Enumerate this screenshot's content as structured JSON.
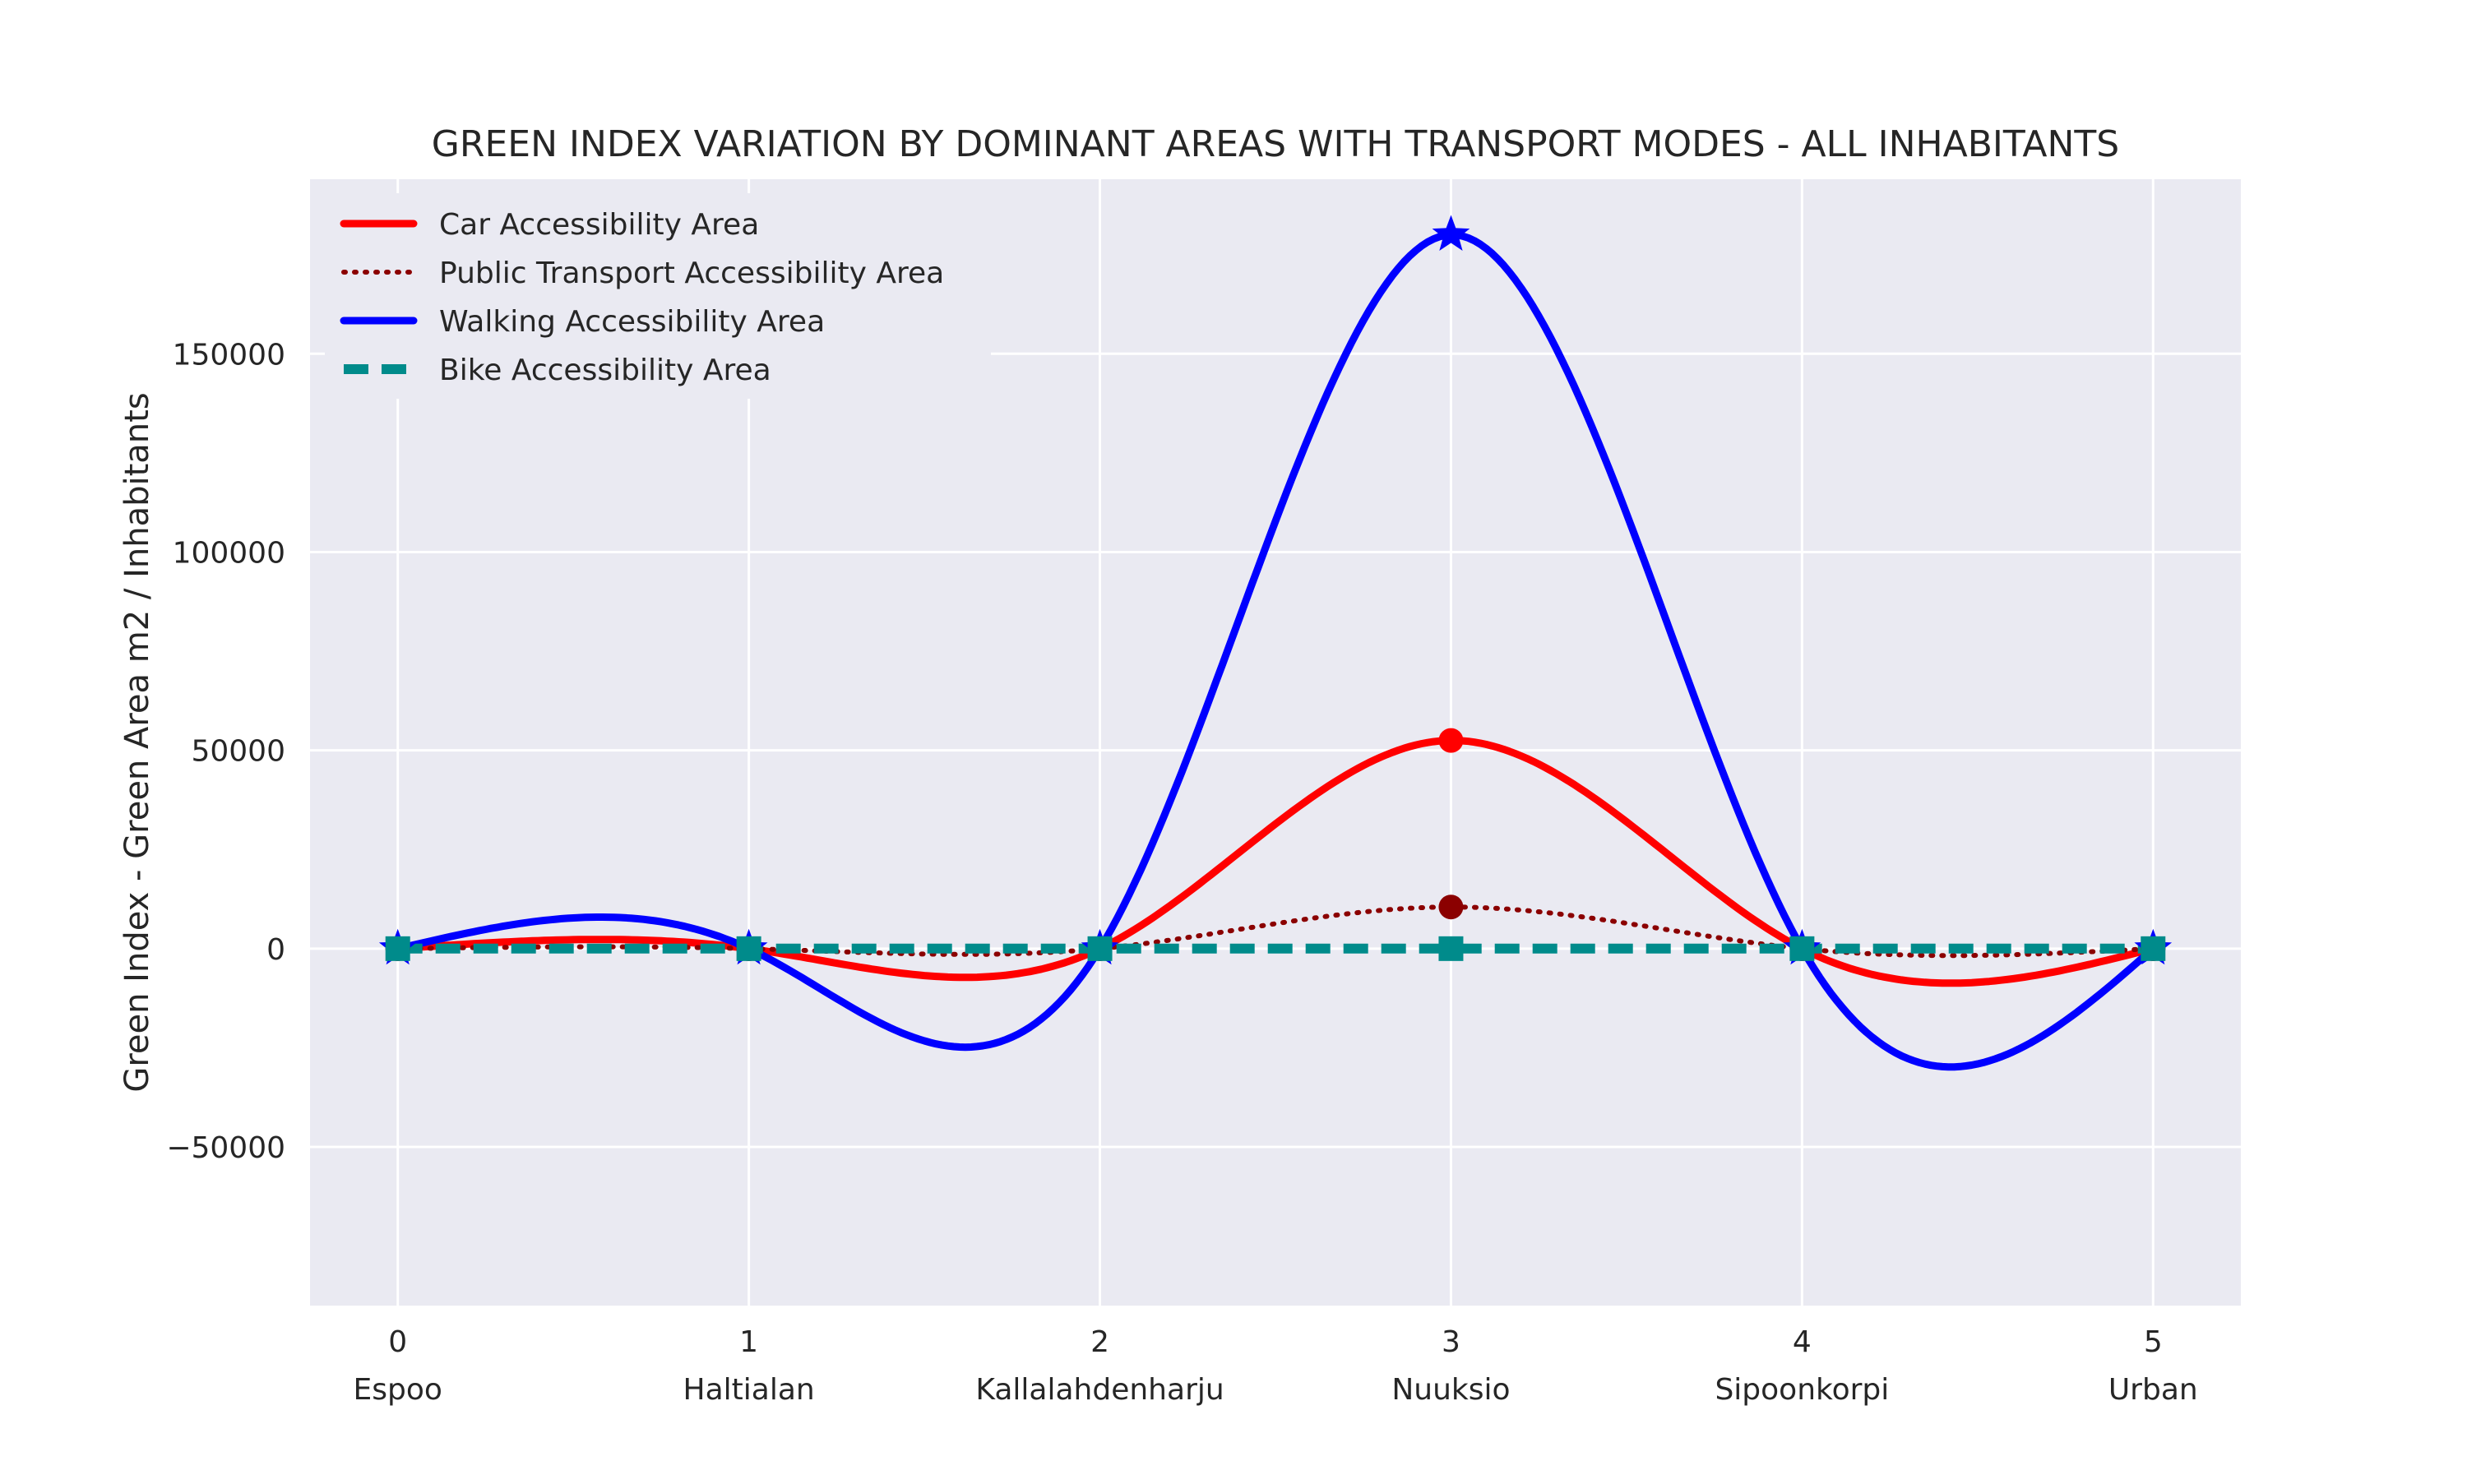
{
  "chart_data": {
    "type": "line",
    "title": "GREEN INDEX VARIATION BY DOMINANT AREAS WITH TRANSPORT MODES - ALL INHABITANTS",
    "xlabel": "",
    "ylabel": "Green Index - Green Area m2 / Inhabitants",
    "x": [
      0,
      1,
      2,
      3,
      4,
      5
    ],
    "categories": [
      "Espoo",
      "Haltialan",
      "Kallalahdenharju",
      "Nuuksio",
      "Sipoonkorpi",
      "Urban"
    ],
    "xlim": [
      -0.25,
      5.25
    ],
    "ylim": [
      -90000,
      194000
    ],
    "yticks": [
      -50000,
      0,
      50000,
      100000,
      150000
    ],
    "ytick_labels": [
      "−50000",
      "0",
      "50000",
      "100000",
      "150000"
    ],
    "grid": true,
    "background": "#eaeaf2",
    "legend_position": "top-left",
    "series": [
      {
        "name": "Car Accessibility Area",
        "values": [
          0,
          0,
          0,
          52500,
          0,
          0
        ],
        "color": "#ff0000",
        "style": "solid",
        "marker": "circle"
      },
      {
        "name": "Public Transport Accessibility Area",
        "values": [
          0,
          0,
          0,
          10500,
          0,
          0
        ],
        "color": "#8b0000",
        "style": "dotted",
        "marker": "circle"
      },
      {
        "name": "Walking Accessibility Area",
        "values": [
          0,
          0,
          0,
          180000,
          0,
          0
        ],
        "color": "#0000ff",
        "style": "solid",
        "marker": "star"
      },
      {
        "name": "Bike Accessibility Area",
        "values": [
          0,
          0,
          0,
          0,
          0,
          0
        ],
        "color": "#008b8b",
        "style": "dashed",
        "marker": "square"
      }
    ]
  }
}
